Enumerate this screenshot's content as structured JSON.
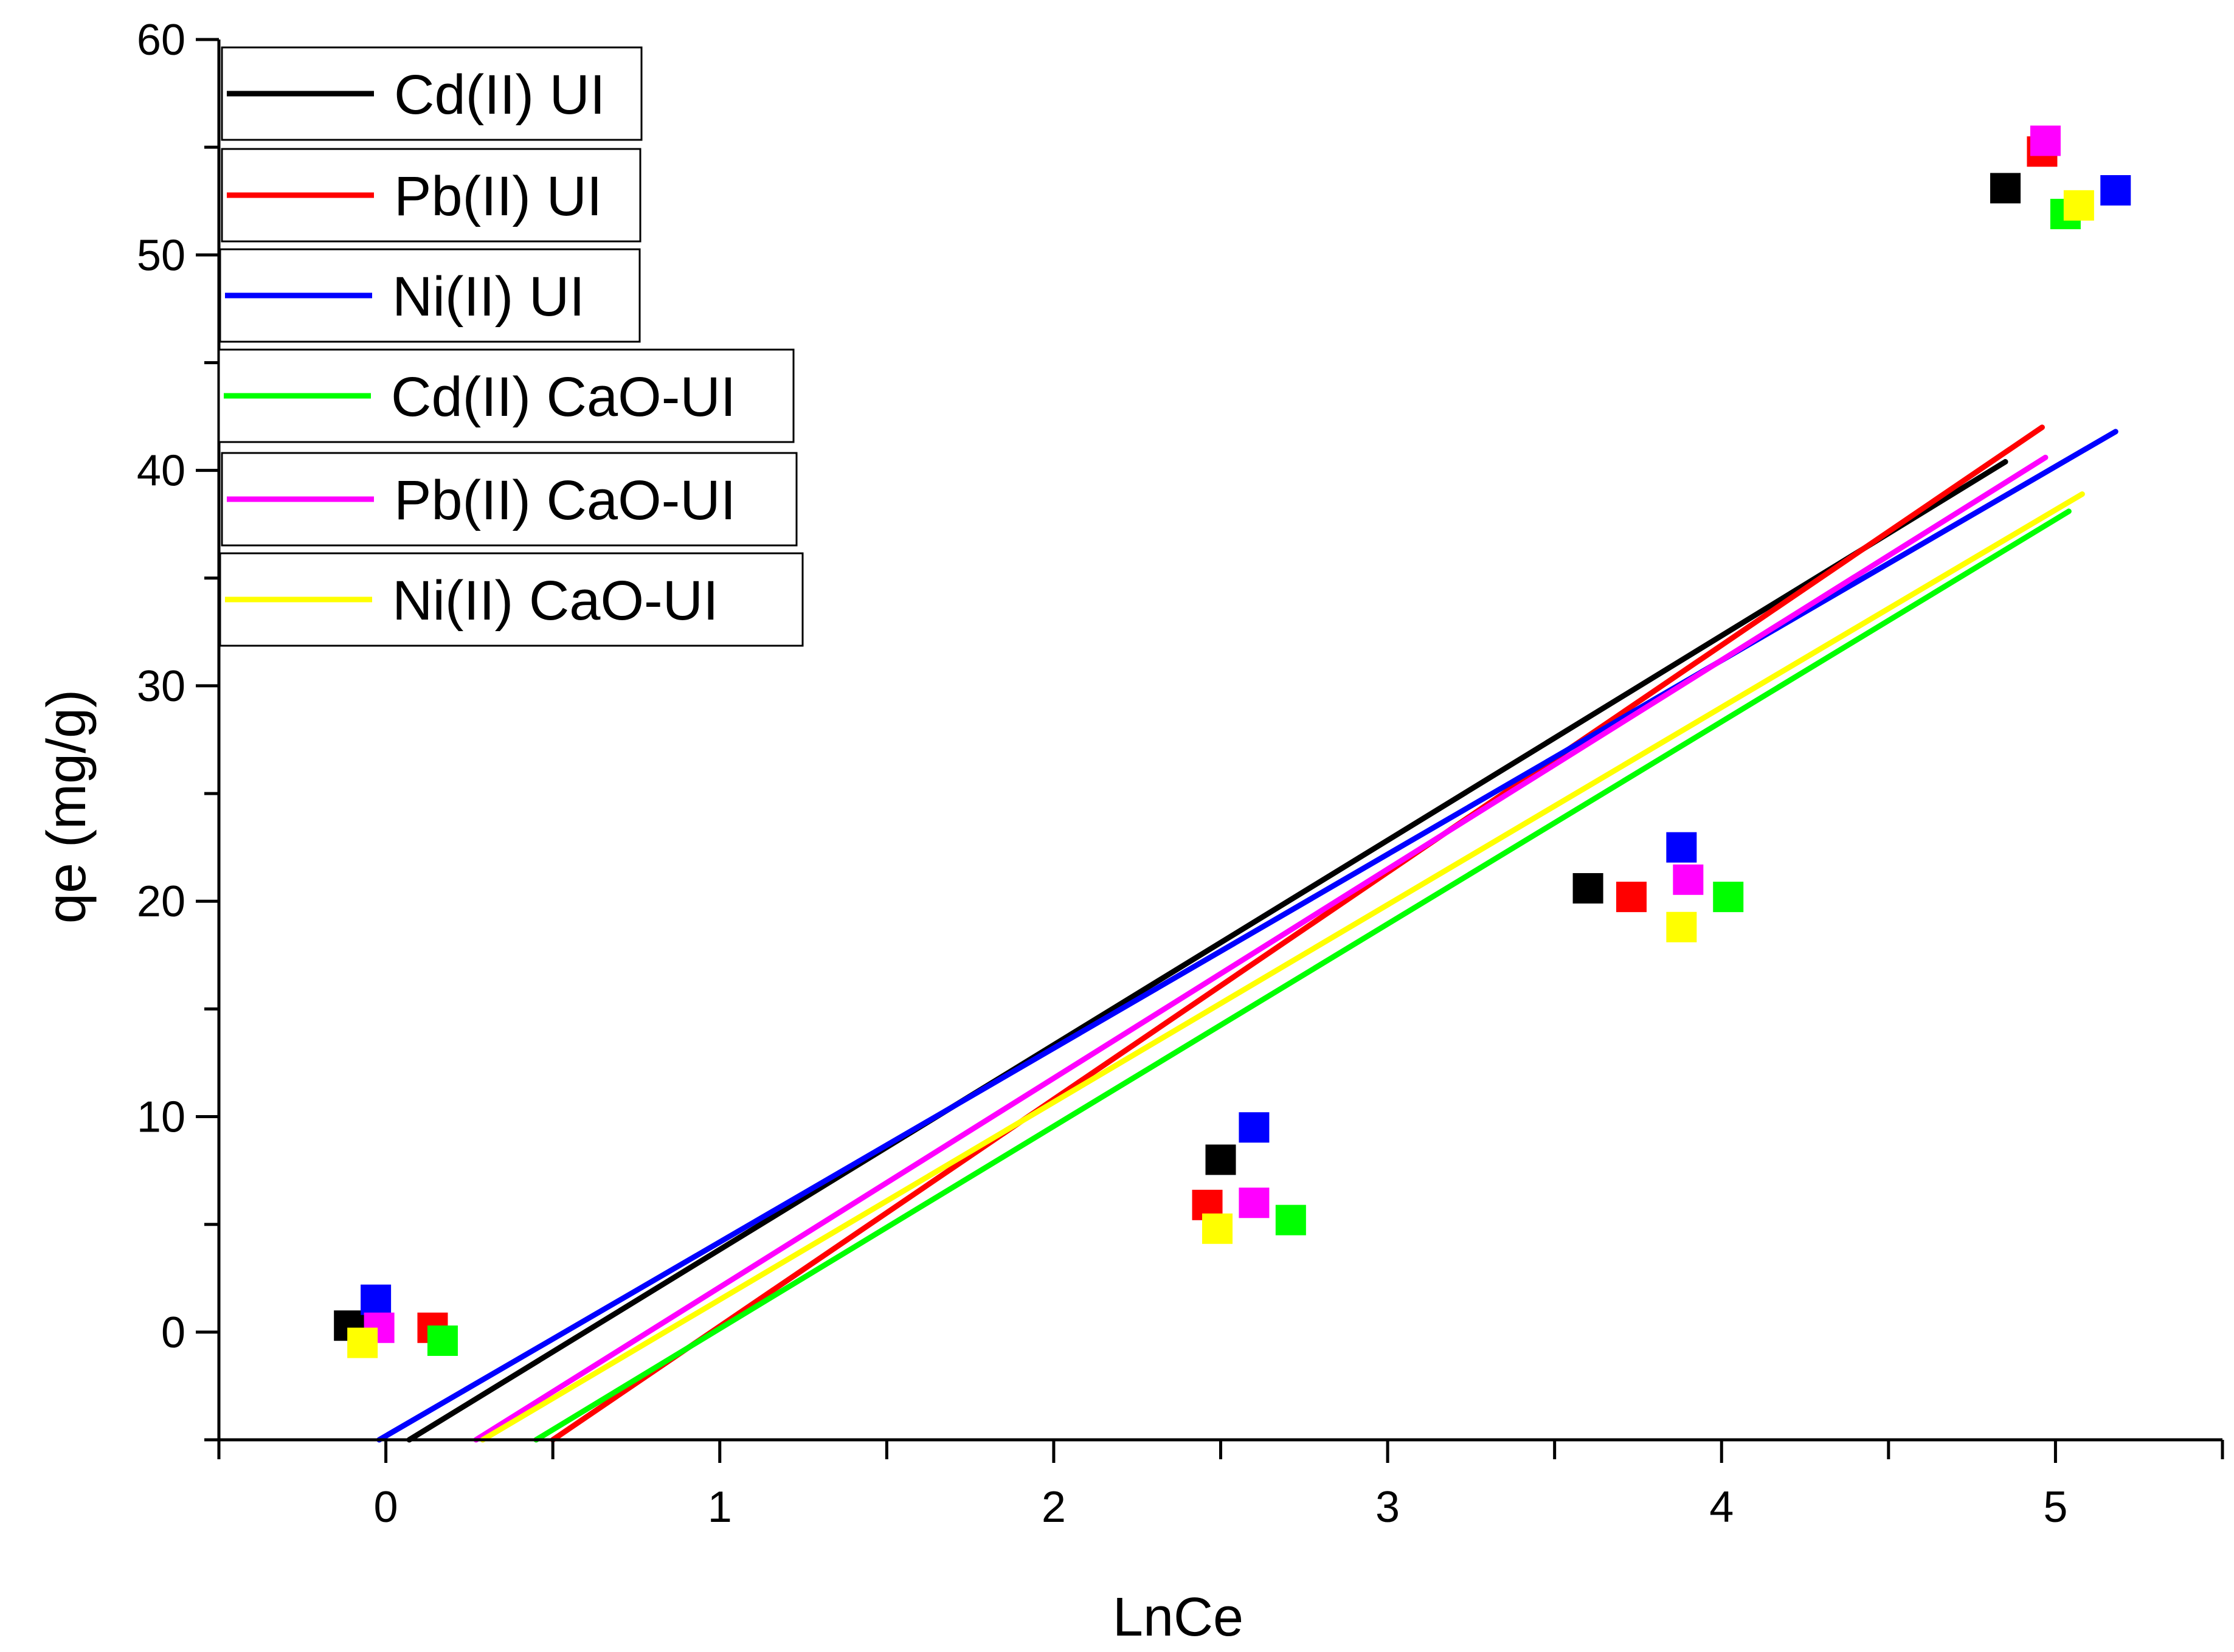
{
  "chart_data": {
    "type": "scatter",
    "title": "",
    "xlabel": "LnCe",
    "ylabel": "qe (mg/g)",
    "xlim": [
      -0.5,
      5.5
    ],
    "ylim": [
      -5,
      60
    ],
    "xticks": [
      0,
      1,
      2,
      3,
      4,
      5
    ],
    "xtick_labels": [
      "0",
      "1",
      "2",
      "3",
      "4",
      "5"
    ],
    "yticks": [
      0,
      10,
      20,
      30,
      40,
      50,
      60
    ],
    "ytick_labels": [
      "0",
      "10",
      "20",
      "30",
      "40",
      "50",
      "60"
    ],
    "grid": false,
    "legend_position": "top-left",
    "series": [
      {
        "name": "Cd(II) UI",
        "color": "#000000",
        "points": [
          [
            -0.11,
            0.3
          ],
          [
            2.5,
            8.0
          ],
          [
            3.6,
            20.6
          ],
          [
            4.85,
            53.1
          ]
        ],
        "fit": [
          [
            0.07,
            -5.0
          ],
          [
            4.85,
            40.4
          ]
        ]
      },
      {
        "name": "Pb(II) UI",
        "color": "#ff0000",
        "points": [
          [
            0.14,
            0.2
          ],
          [
            2.46,
            5.9
          ],
          [
            3.73,
            20.2
          ],
          [
            4.96,
            54.8
          ]
        ],
        "fit": [
          [
            0.5,
            -5.0
          ],
          [
            4.96,
            42.0
          ]
        ]
      },
      {
        "name": "Ni(II) UI",
        "color": "#0000ff",
        "points": [
          [
            -0.03,
            1.5
          ],
          [
            2.6,
            9.5
          ],
          [
            3.88,
            22.5
          ],
          [
            5.18,
            53.0
          ]
        ],
        "fit": [
          [
            -0.02,
            -5.0
          ],
          [
            5.18,
            41.8
          ]
        ]
      },
      {
        "name": "Cd(II) CaO-UI",
        "color": "#00ff00",
        "points": [
          [
            0.17,
            -0.4
          ],
          [
            2.71,
            5.2
          ],
          [
            4.02,
            20.2
          ],
          [
            5.03,
            51.9
          ]
        ],
        "fit": [
          [
            0.45,
            -5.0
          ],
          [
            5.04,
            38.1
          ]
        ]
      },
      {
        "name": "Pb(II) CaO-UI",
        "color": "#ff00ff",
        "points": [
          [
            -0.02,
            0.2
          ],
          [
            2.6,
            6.0
          ],
          [
            3.9,
            21.0
          ],
          [
            4.97,
            55.3
          ]
        ],
        "fit": [
          [
            0.27,
            -5.0
          ],
          [
            4.97,
            40.6
          ]
        ]
      },
      {
        "name": "Ni(II) CaO-UI",
        "color": "#ffff00",
        "points": [
          [
            -0.07,
            -0.5
          ],
          [
            2.49,
            4.8
          ],
          [
            3.88,
            18.8
          ],
          [
            5.07,
            52.3
          ]
        ],
        "fit": [
          [
            0.29,
            -5.0
          ],
          [
            5.08,
            38.9
          ]
        ]
      }
    ]
  }
}
